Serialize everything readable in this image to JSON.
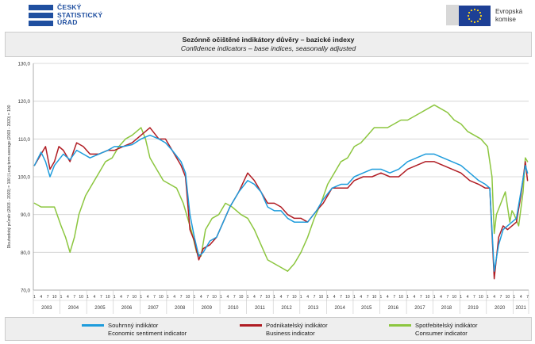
{
  "header": {
    "csu_line1": "ČESKÝ",
    "csu_line2": "STATISTICKÝ",
    "csu_line3": "ÚŘAD",
    "eu_line1": "Evropská",
    "eu_line2": "komise"
  },
  "chart_data": {
    "type": "line",
    "title": "Sezónně očištěné indikátory důvěry – bazické indexy",
    "subtitle": "Confidence indicators – base indices, seasonally adjusted",
    "ylabel": "Dlouhodobý průměr (2003 - 2020) = 100 | Long term average (2003 - 2020) = 100",
    "ylim": [
      70,
      130
    ],
    "yticks": [
      "70,0",
      "80,0",
      "90,0",
      "100,0",
      "110,0",
      "120,0",
      "130,0"
    ],
    "month_labels": [
      "1",
      "4",
      "7",
      "10"
    ],
    "x_start": "2003-01",
    "x_end": "2021-07",
    "year_labels": [
      "2003",
      "2004",
      "2005",
      "2006",
      "2007",
      "2008",
      "2009",
      "2010",
      "2011",
      "2012",
      "2013",
      "2014",
      "2015",
      "2016",
      "2017",
      "2018",
      "2019",
      "2020",
      "2021"
    ],
    "grid": true,
    "legend": "bottom",
    "colors": {
      "economic": "#1e9cdc",
      "business": "#b01c23",
      "consumer": "#8cc63f"
    },
    "series": [
      {
        "key": "economic",
        "name_cz": "Souhrnný indikátor",
        "name_en": "Economic sentiment indicator",
        "points": [
          [
            "2003-01",
            103
          ],
          [
            "2003-04",
            106.5
          ],
          [
            "2003-06",
            104
          ],
          [
            "2003-08",
            100
          ],
          [
            "2003-10",
            103
          ],
          [
            "2003-12",
            104.5
          ],
          [
            "2004-02",
            106
          ],
          [
            "2004-05",
            104.5
          ],
          [
            "2004-08",
            107
          ],
          [
            "2004-11",
            106
          ],
          [
            "2005-02",
            105
          ],
          [
            "2005-06",
            106
          ],
          [
            "2005-10",
            107
          ],
          [
            "2006-01",
            108
          ],
          [
            "2006-05",
            108
          ],
          [
            "2006-09",
            108.5
          ],
          [
            "2007-01",
            110
          ],
          [
            "2007-05",
            111
          ],
          [
            "2007-09",
            110
          ],
          [
            "2007-12",
            109
          ],
          [
            "2008-03",
            107
          ],
          [
            "2008-07",
            104
          ],
          [
            "2008-09",
            101
          ],
          [
            "2008-11",
            90
          ],
          [
            "2009-01",
            84
          ],
          [
            "2009-03",
            79
          ],
          [
            "2009-05",
            80
          ],
          [
            "2009-08",
            83
          ],
          [
            "2009-11",
            84
          ],
          [
            "2010-02",
            88
          ],
          [
            "2010-05",
            92
          ],
          [
            "2010-09",
            96
          ],
          [
            "2011-01",
            99
          ],
          [
            "2011-04",
            98
          ],
          [
            "2011-07",
            96
          ],
          [
            "2011-10",
            92
          ],
          [
            "2012-01",
            91
          ],
          [
            "2012-04",
            91
          ],
          [
            "2012-07",
            89
          ],
          [
            "2012-10",
            88
          ],
          [
            "2013-01",
            88
          ],
          [
            "2013-04",
            88
          ],
          [
            "2013-08",
            91
          ],
          [
            "2013-11",
            94
          ],
          [
            "2014-03",
            97
          ],
          [
            "2014-07",
            98
          ],
          [
            "2014-10",
            98
          ],
          [
            "2015-01",
            100
          ],
          [
            "2015-05",
            101
          ],
          [
            "2015-09",
            102
          ],
          [
            "2016-01",
            102
          ],
          [
            "2016-05",
            101
          ],
          [
            "2016-09",
            102
          ],
          [
            "2017-01",
            104
          ],
          [
            "2017-05",
            105
          ],
          [
            "2017-09",
            106
          ],
          [
            "2018-01",
            106
          ],
          [
            "2018-05",
            105
          ],
          [
            "2018-09",
            104
          ],
          [
            "2019-01",
            103
          ],
          [
            "2019-05",
            101
          ],
          [
            "2019-09",
            99
          ],
          [
            "2019-12",
            98
          ],
          [
            "2020-02",
            97
          ],
          [
            "2020-04",
            75
          ],
          [
            "2020-06",
            82
          ],
          [
            "2020-08",
            86
          ],
          [
            "2020-10",
            87
          ],
          [
            "2020-12",
            88
          ],
          [
            "2021-02",
            89
          ],
          [
            "2021-04",
            96
          ],
          [
            "2021-06",
            103
          ],
          [
            "2021-07",
            101
          ]
        ]
      },
      {
        "key": "business",
        "name_cz": "Podnikatelský indikátor",
        "name_en": "Business indicator",
        "points": [
          [
            "2003-01",
            103
          ],
          [
            "2003-04",
            106
          ],
          [
            "2003-06",
            108
          ],
          [
            "2003-08",
            102
          ],
          [
            "2003-10",
            104
          ],
          [
            "2003-12",
            108
          ],
          [
            "2004-02",
            107
          ],
          [
            "2004-05",
            104
          ],
          [
            "2004-08",
            109
          ],
          [
            "2004-11",
            108
          ],
          [
            "2005-02",
            106
          ],
          [
            "2005-06",
            106
          ],
          [
            "2005-10",
            107
          ],
          [
            "2006-01",
            107
          ],
          [
            "2006-05",
            108
          ],
          [
            "2006-09",
            109
          ],
          [
            "2007-01",
            111
          ],
          [
            "2007-05",
            113
          ],
          [
            "2007-09",
            110
          ],
          [
            "2007-12",
            110
          ],
          [
            "2008-03",
            107
          ],
          [
            "2008-07",
            103
          ],
          [
            "2008-09",
            100
          ],
          [
            "2008-11",
            86
          ],
          [
            "2009-01",
            83
          ],
          [
            "2009-03",
            78
          ],
          [
            "2009-05",
            81
          ],
          [
            "2009-08",
            82
          ],
          [
            "2009-11",
            84
          ],
          [
            "2010-02",
            88
          ],
          [
            "2010-05",
            92
          ],
          [
            "2010-09",
            96
          ],
          [
            "2011-01",
            101
          ],
          [
            "2011-04",
            99
          ],
          [
            "2011-07",
            96
          ],
          [
            "2011-10",
            93
          ],
          [
            "2012-01",
            93
          ],
          [
            "2012-04",
            92
          ],
          [
            "2012-07",
            90
          ],
          [
            "2012-10",
            89
          ],
          [
            "2013-01",
            89
          ],
          [
            "2013-04",
            88
          ],
          [
            "2013-08",
            91
          ],
          [
            "2013-11",
            93
          ],
          [
            "2014-03",
            97
          ],
          [
            "2014-07",
            97
          ],
          [
            "2014-10",
            97
          ],
          [
            "2015-01",
            99
          ],
          [
            "2015-05",
            100
          ],
          [
            "2015-09",
            100
          ],
          [
            "2016-01",
            101
          ],
          [
            "2016-05",
            100
          ],
          [
            "2016-09",
            100
          ],
          [
            "2017-01",
            102
          ],
          [
            "2017-05",
            103
          ],
          [
            "2017-09",
            104
          ],
          [
            "2018-01",
            104
          ],
          [
            "2018-05",
            103
          ],
          [
            "2018-09",
            102
          ],
          [
            "2019-01",
            101
          ],
          [
            "2019-05",
            99
          ],
          [
            "2019-09",
            98
          ],
          [
            "2019-12",
            97
          ],
          [
            "2020-02",
            97
          ],
          [
            "2020-04",
            73
          ],
          [
            "2020-06",
            84
          ],
          [
            "2020-08",
            87
          ],
          [
            "2020-10",
            86
          ],
          [
            "2020-12",
            87
          ],
          [
            "2021-02",
            88
          ],
          [
            "2021-04",
            95
          ],
          [
            "2021-06",
            104
          ],
          [
            "2021-07",
            99
          ]
        ]
      },
      {
        "key": "consumer",
        "name_cz": "Spotřebitelský indikátor",
        "name_en": "Consumer indicator",
        "points": [
          [
            "2003-01",
            93
          ],
          [
            "2003-04",
            92
          ],
          [
            "2003-07",
            92
          ],
          [
            "2003-10",
            92
          ],
          [
            "2004-01",
            87
          ],
          [
            "2004-03",
            84
          ],
          [
            "2004-05",
            80
          ],
          [
            "2004-07",
            84
          ],
          [
            "2004-09",
            90
          ],
          [
            "2004-12",
            95
          ],
          [
            "2005-03",
            98
          ],
          [
            "2005-06",
            101
          ],
          [
            "2005-09",
            104
          ],
          [
            "2005-12",
            105
          ],
          [
            "2006-03",
            108
          ],
          [
            "2006-06",
            110
          ],
          [
            "2006-09",
            111
          ],
          [
            "2007-01",
            113
          ],
          [
            "2007-03",
            110
          ],
          [
            "2007-05",
            105
          ],
          [
            "2007-07",
            103
          ],
          [
            "2007-09",
            101
          ],
          [
            "2007-11",
            99
          ],
          [
            "2008-02",
            98
          ],
          [
            "2008-05",
            97
          ],
          [
            "2008-08",
            93
          ],
          [
            "2008-10",
            89
          ],
          [
            "2008-12",
            85
          ],
          [
            "2009-02",
            80
          ],
          [
            "2009-04",
            79
          ],
          [
            "2009-06",
            86
          ],
          [
            "2009-09",
            89
          ],
          [
            "2009-12",
            90
          ],
          [
            "2010-03",
            93
          ],
          [
            "2010-06",
            92
          ],
          [
            "2010-10",
            90
          ],
          [
            "2011-01",
            89
          ],
          [
            "2011-04",
            86
          ],
          [
            "2011-07",
            82
          ],
          [
            "2011-10",
            78
          ],
          [
            "2012-01",
            77
          ],
          [
            "2012-04",
            76
          ],
          [
            "2012-07",
            75
          ],
          [
            "2012-10",
            77
          ],
          [
            "2013-01",
            80
          ],
          [
            "2013-04",
            84
          ],
          [
            "2013-07",
            89
          ],
          [
            "2013-10",
            93
          ],
          [
            "2014-01",
            98
          ],
          [
            "2014-04",
            101
          ],
          [
            "2014-07",
            104
          ],
          [
            "2014-10",
            105
          ],
          [
            "2015-01",
            108
          ],
          [
            "2015-04",
            109
          ],
          [
            "2015-07",
            111
          ],
          [
            "2015-10",
            113
          ],
          [
            "2016-01",
            113
          ],
          [
            "2016-04",
            113
          ],
          [
            "2016-07",
            114
          ],
          [
            "2016-10",
            115
          ],
          [
            "2017-01",
            115
          ],
          [
            "2017-04",
            116
          ],
          [
            "2017-07",
            117
          ],
          [
            "2017-10",
            118
          ],
          [
            "2018-01",
            119
          ],
          [
            "2018-04",
            118
          ],
          [
            "2018-07",
            117
          ],
          [
            "2018-10",
            115
          ],
          [
            "2019-01",
            114
          ],
          [
            "2019-04",
            112
          ],
          [
            "2019-07",
            111
          ],
          [
            "2019-10",
            110
          ],
          [
            "2020-01",
            108
          ],
          [
            "2020-03",
            100
          ],
          [
            "2020-04",
            85
          ],
          [
            "2020-05",
            90
          ],
          [
            "2020-07",
            93
          ],
          [
            "2020-09",
            96
          ],
          [
            "2020-11",
            88
          ],
          [
            "2020-12",
            91
          ],
          [
            "2021-01",
            90
          ],
          [
            "2021-03",
            87
          ],
          [
            "2021-05",
            96
          ],
          [
            "2021-06",
            105
          ],
          [
            "2021-07",
            104
          ]
        ]
      }
    ]
  }
}
